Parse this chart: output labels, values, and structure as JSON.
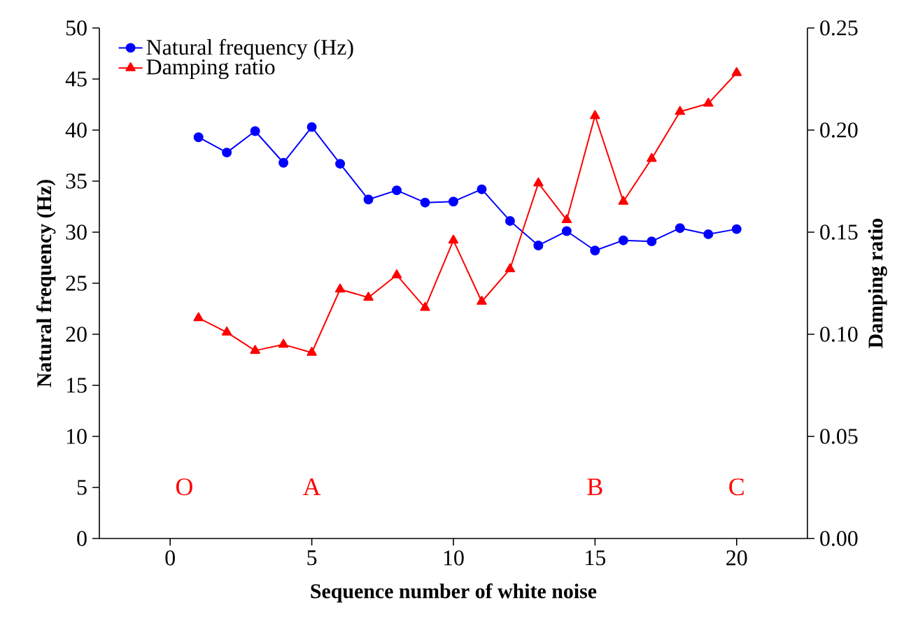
{
  "chart_data": {
    "type": "line",
    "xlabel": "Sequence number of white noise",
    "ylabel": "Natural frequency (Hz)",
    "y2label": "Damping ratio",
    "x": [
      1,
      2,
      3,
      4,
      5,
      6,
      7,
      8,
      9,
      10,
      11,
      12,
      13,
      14,
      15,
      16,
      17,
      18,
      19,
      20
    ],
    "series": [
      {
        "name": "Natural frequency (Hz)",
        "color": "#0000ff",
        "marker": "circle",
        "values": [
          39.3,
          37.8,
          39.9,
          36.8,
          40.3,
          36.7,
          33.2,
          34.1,
          32.9,
          33.0,
          34.2,
          31.1,
          28.7,
          30.1,
          28.2,
          29.2,
          29.1,
          30.4,
          29.8,
          30.3
        ]
      },
      {
        "name": "Damping ratio",
        "color": "#ff0000",
        "marker": "triangle",
        "axis": "y2",
        "values": [
          0.108,
          0.101,
          0.092,
          0.095,
          0.091,
          0.122,
          0.118,
          0.129,
          0.113,
          0.146,
          0.116,
          0.132,
          0.174,
          0.156,
          0.207,
          0.165,
          0.186,
          0.209,
          0.213,
          0.228
        ]
      }
    ],
    "xlim": [
      -2.5,
      22.5
    ],
    "xticks": [
      0,
      5,
      10,
      15,
      20
    ],
    "ylim": [
      0,
      50
    ],
    "yticks": [
      0,
      5,
      10,
      15,
      20,
      25,
      30,
      35,
      40,
      45,
      50
    ],
    "y2lim": [
      0,
      0.25
    ],
    "y2ticks": [
      {
        "value": 0,
        "label": "0.00"
      },
      {
        "value": 0.05,
        "label": "0.05"
      },
      {
        "value": 0.1,
        "label": "0.10"
      },
      {
        "value": 0.15,
        "label": "0.15"
      },
      {
        "value": 0.2,
        "label": "0.20"
      },
      {
        "value": 0.25,
        "label": "0.25"
      }
    ],
    "annotations": [
      "O",
      "A",
      "B",
      "C"
    ],
    "legend": "top left",
    "grid": false
  }
}
